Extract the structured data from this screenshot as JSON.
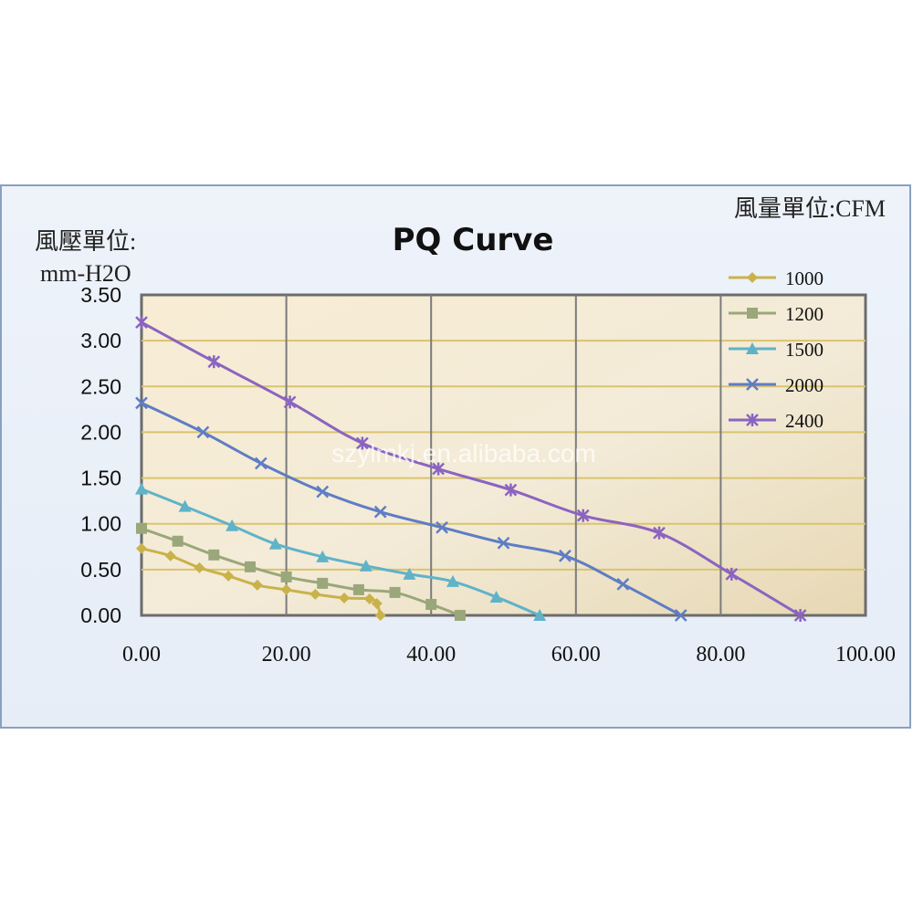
{
  "chart_data": {
    "type": "line",
    "title": "PQ Curve",
    "ylabel_lines": [
      "風壓單位:",
      "mm-H2O"
    ],
    "xunit_label": "風量單位:CFM",
    "watermark": "szylmkj.en.alibaba.com",
    "xlim": [
      0,
      100
    ],
    "ylim": [
      0,
      3.5
    ],
    "xticks": [
      "0.00",
      "20.00",
      "40.00",
      "60.00",
      "80.00",
      "100.00"
    ],
    "yticks": [
      "0.00",
      "0.50",
      "1.00",
      "1.50",
      "2.00",
      "2.50",
      "3.00",
      "3.50"
    ],
    "grid": true,
    "legend_position": "top-right",
    "series": [
      {
        "name": "1000",
        "color": "#c9b24a",
        "marker": "diamond",
        "x": [
          0,
          4,
          8,
          12,
          16,
          20,
          24,
          28,
          31.5,
          32.5,
          33
        ],
        "y": [
          0.73,
          0.65,
          0.52,
          0.43,
          0.33,
          0.28,
          0.23,
          0.19,
          0.18,
          0.13,
          0.0
        ]
      },
      {
        "name": "1200",
        "color": "#9aa77a",
        "marker": "square",
        "x": [
          0,
          5,
          10,
          15,
          20,
          25,
          30,
          35,
          40,
          44
        ],
        "y": [
          0.95,
          0.81,
          0.66,
          0.53,
          0.42,
          0.35,
          0.28,
          0.25,
          0.12,
          0.0
        ]
      },
      {
        "name": "1500",
        "color": "#5fb3c8",
        "marker": "triangle",
        "x": [
          0,
          6,
          12.5,
          18.5,
          25,
          31,
          37,
          43,
          49,
          55
        ],
        "y": [
          1.38,
          1.19,
          0.98,
          0.78,
          0.64,
          0.54,
          0.45,
          0.37,
          0.2,
          0.0
        ]
      },
      {
        "name": "2000",
        "color": "#5e7dc4",
        "marker": "x",
        "x": [
          0,
          8.5,
          16.5,
          25,
          33,
          41.5,
          50,
          58.5,
          66.5,
          74.5
        ],
        "y": [
          2.32,
          2.0,
          1.66,
          1.35,
          1.13,
          0.96,
          0.79,
          0.65,
          0.34,
          0.0
        ]
      },
      {
        "name": "2400",
        "color": "#8b64c0",
        "marker": "asterisk",
        "x": [
          0,
          10,
          20.5,
          30.5,
          41,
          51,
          61,
          71.5,
          81.5,
          91
        ],
        "y": [
          3.2,
          2.77,
          2.33,
          1.88,
          1.6,
          1.37,
          1.09,
          0.9,
          0.45,
          0.0
        ]
      }
    ]
  }
}
